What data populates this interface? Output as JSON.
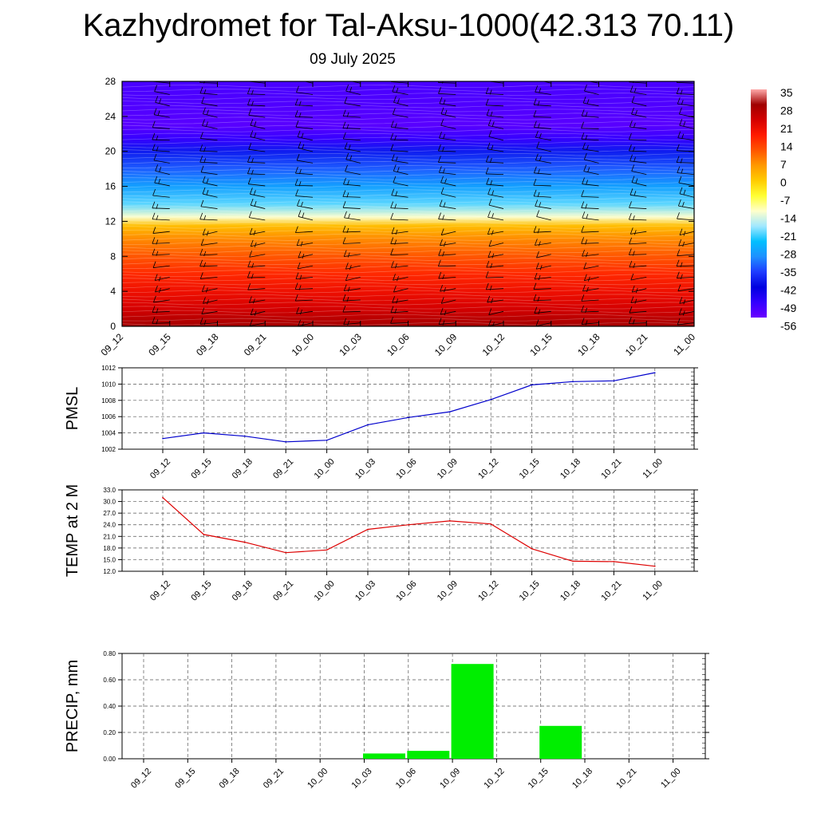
{
  "header": {
    "title": "Kazhydromet for Tal-Aksu-1000(42.313 70.11)",
    "date": "09 July 2025"
  },
  "time_labels": [
    "09_12",
    "09_15",
    "09_18",
    "09_21",
    "10_00",
    "10_03",
    "10_06",
    "10_09",
    "10_12",
    "10_15",
    "10_18",
    "10_21",
    "11_00"
  ],
  "chart_data": [
    {
      "type": "heatmap",
      "title": "",
      "xlabel": "",
      "ylabel": "",
      "x": [
        "09_12",
        "09_15",
        "09_18",
        "09_21",
        "10_00",
        "10_03",
        "10_06",
        "10_09",
        "10_12",
        "10_15",
        "10_18",
        "10_21",
        "11_00"
      ],
      "yticks": [
        0,
        4,
        8,
        12,
        16,
        20,
        24,
        28
      ],
      "ylim": [
        0,
        28
      ],
      "colorbar": {
        "labels": [
          "35",
          "28",
          "21",
          "14",
          "7",
          "0",
          "-7",
          "-14",
          "-21",
          "-28",
          "-35",
          "-42",
          "-49",
          "-56"
        ],
        "range": [
          -60,
          37
        ],
        "colors": [
          "#6a00ff",
          "#3300ff",
          "#0000e0",
          "#1e3cff",
          "#1e90ff",
          "#00bfff",
          "#a0e8ff",
          "#ffffcc",
          "#ffff33",
          "#ffcc00",
          "#ff9900",
          "#ff5500",
          "#ff1a00",
          "#d40000",
          "#a00000",
          "#ffaaaa"
        ]
      },
      "temperature_profile": {
        "levels": [
          0,
          2,
          4,
          6,
          8,
          10,
          11.5,
          12.5,
          14,
          16,
          18,
          20,
          21.5,
          23,
          25,
          28
        ],
        "values": [
          30,
          24,
          20,
          16,
          11,
          6,
          0,
          -15,
          -24,
          -32,
          -38,
          -44,
          -54,
          -58,
          -57,
          -56
        ]
      },
      "wind_barbs": {
        "columns": 13,
        "levels_per_column": 22
      }
    },
    {
      "type": "line",
      "ylabel": "PMSL",
      "x": [
        "09_12",
        "09_15",
        "09_18",
        "09_21",
        "10_00",
        "10_03",
        "10_06",
        "10_09",
        "10_12",
        "10_15",
        "10_18",
        "10_21",
        "11_00"
      ],
      "series": [
        {
          "values": [
            1003.3,
            1004.0,
            1003.6,
            1002.9,
            1003.1,
            1005.0,
            1005.9,
            1006.6,
            1008.1,
            1009.9,
            1010.3,
            1010.4,
            1011.4
          ],
          "color": "#0000cc"
        }
      ],
      "ylim": [
        1002,
        1012
      ],
      "yticks": [
        "1002",
        "1004",
        "1006",
        "1008",
        "1010",
        "1012"
      ],
      "grid": true
    },
    {
      "type": "line",
      "ylabel": "TEMP at 2 M",
      "x": [
        "09_12",
        "09_15",
        "09_18",
        "09_21",
        "10_00",
        "10_03",
        "10_06",
        "10_09",
        "10_12",
        "10_15",
        "10_18",
        "10_21",
        "11_00"
      ],
      "series": [
        {
          "values": [
            31.0,
            21.5,
            19.5,
            16.8,
            17.5,
            22.8,
            24.0,
            25.0,
            24.2,
            17.8,
            14.6,
            14.5,
            13.3
          ],
          "color": "#dd0000"
        }
      ],
      "ylim": [
        12,
        33
      ],
      "yticks": [
        "12.0",
        "15.0",
        "18.0",
        "21.0",
        "24.0",
        "27.0",
        "30.0",
        "33.0"
      ],
      "grid": true
    },
    {
      "type": "bar",
      "ylabel": "PRECIP, mm",
      "categories": [
        "09_12",
        "09_15",
        "09_18",
        "09_21",
        "10_00",
        "10_03",
        "10_06",
        "10_09",
        "10_12",
        "10_15",
        "10_18",
        "10_21",
        "11_00"
      ],
      "values": [
        0,
        0,
        0,
        0,
        0,
        0.04,
        0.06,
        0.72,
        0,
        0.25,
        0,
        0,
        0
      ],
      "color": "#00ee00",
      "ylim": [
        0,
        0.8
      ],
      "yticks": [
        "0.00",
        "0.20",
        "0.40",
        "0.60",
        "0.80"
      ],
      "grid": true
    }
  ]
}
